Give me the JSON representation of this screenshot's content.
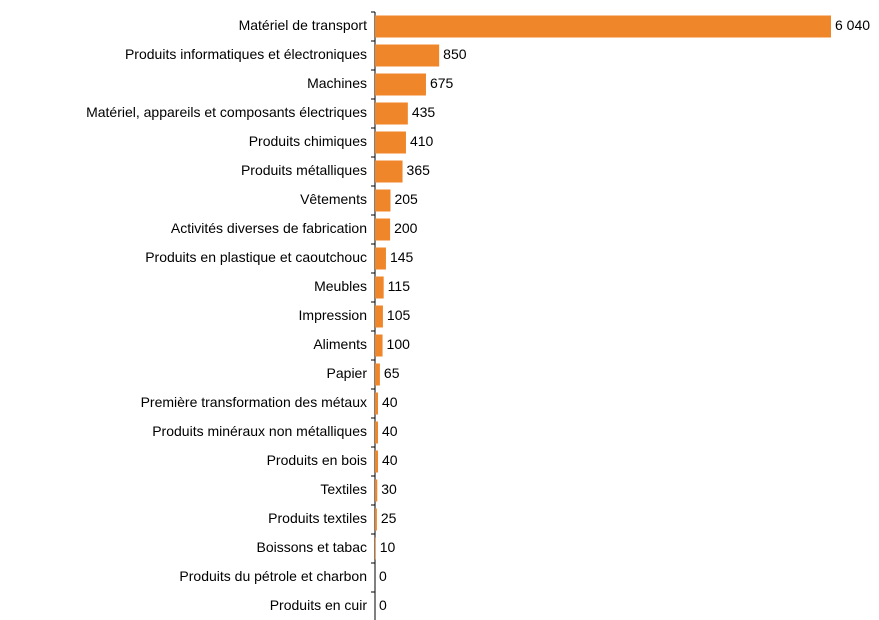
{
  "chart_data": {
    "type": "hbar",
    "categories": [
      "Matériel de transport",
      "Produits informatiques et électroniques",
      "Machines",
      "Matériel, appareils et composants électriques",
      "Produits chimiques",
      "Produits métalliques",
      "Vêtements",
      "Activités diverses de fabrication",
      "Produits en plastique et caoutchouc",
      "Meubles",
      "Impression",
      "Aliments",
      "Papier",
      "Première transformation des métaux",
      "Produits minéraux non métalliques",
      "Produits en bois",
      "Textiles",
      "Produits textiles",
      "Boissons et tabac",
      "Produits du pétrole et charbon",
      "Produits en cuir"
    ],
    "values": [
      6040,
      850,
      675,
      435,
      410,
      365,
      205,
      200,
      145,
      115,
      105,
      100,
      65,
      40,
      40,
      40,
      30,
      25,
      10,
      0,
      0
    ],
    "value_labels": [
      "6 040",
      "850",
      "675",
      "435",
      "410",
      "365",
      "205",
      "200",
      "145",
      "115",
      "105",
      "100",
      "65",
      "40",
      "40",
      "40",
      "30",
      "25",
      "10",
      "0",
      "0"
    ],
    "color": "#f0862a",
    "xlim": [
      0,
      6040
    ]
  }
}
